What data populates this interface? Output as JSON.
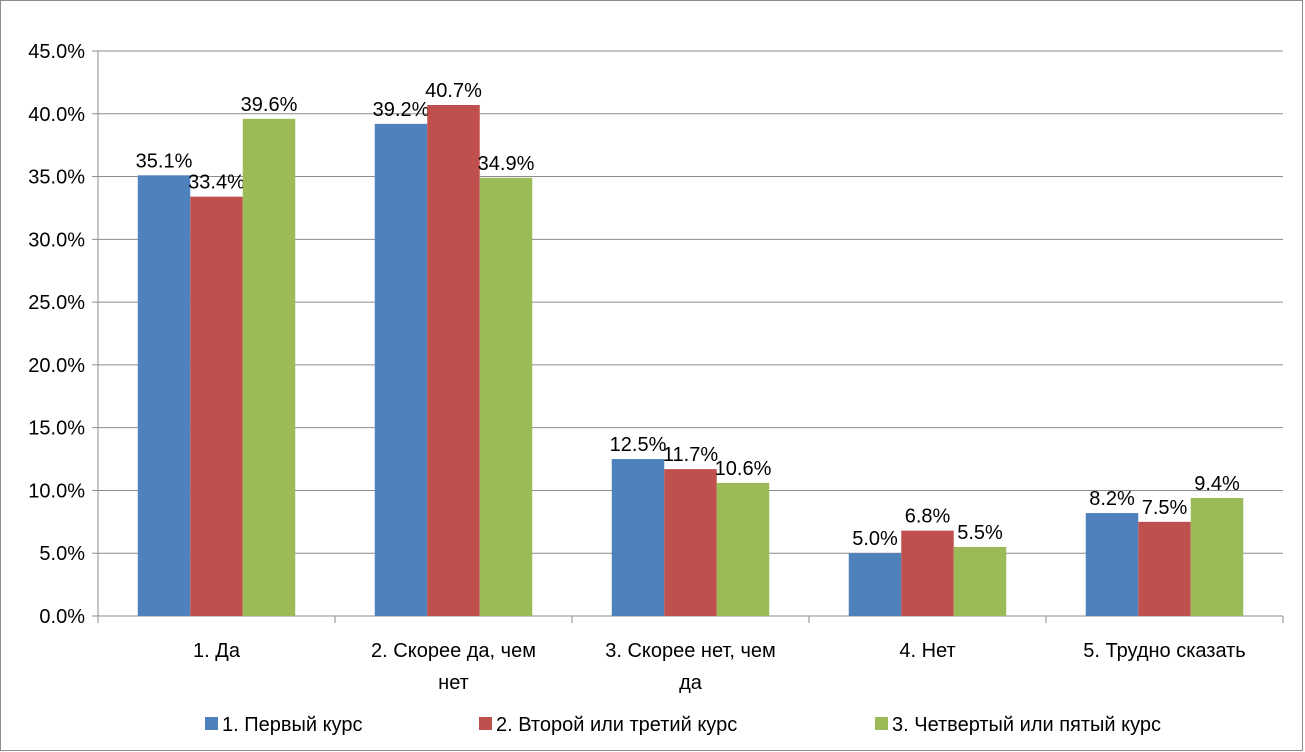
{
  "chart_data": {
    "type": "bar",
    "categories": [
      "1. Да",
      "2. Скорее да, чем нет",
      "3. Скорее нет, чем да",
      "4. Нет",
      "5. Трудно сказать"
    ],
    "category_lines": [
      [
        "1. Да"
      ],
      [
        "2. Скорее да, чем",
        "нет"
      ],
      [
        "3. Скорее нет, чем",
        "да"
      ],
      [
        "4. Нет"
      ],
      [
        "5. Трудно сказать"
      ]
    ],
    "series": [
      {
        "name": "1. Первый курс",
        "color": "#4F81BD",
        "values": [
          35.1,
          39.2,
          12.5,
          5.0,
          8.2
        ]
      },
      {
        "name": "2. Второй или третий курс",
        "color": "#C0504D",
        "values": [
          33.4,
          40.7,
          11.7,
          6.8,
          7.5
        ]
      },
      {
        "name": "3. Четвертый или пятый курс",
        "color": "#9BBB59",
        "values": [
          39.6,
          34.9,
          10.6,
          5.5,
          9.4
        ]
      }
    ],
    "data_labels": [
      [
        "35.1%",
        "39.2%",
        "12.5%",
        "5.0%",
        "8.2%"
      ],
      [
        "33.4%",
        "40.7%",
        "11.7%",
        "6.8%",
        "7.5%"
      ],
      [
        "39.6%",
        "34.9%",
        "10.6%",
        "5.5%",
        "9.4%"
      ]
    ],
    "y_ticks": [
      "0.0%",
      "5.0%",
      "10.0%",
      "15.0%",
      "20.0%",
      "25.0%",
      "30.0%",
      "35.0%",
      "40.0%",
      "45.0%"
    ],
    "ylim": [
      0,
      45
    ],
    "ystep": 5,
    "grid": true,
    "legend_position": "bottom",
    "title": "",
    "xlabel": "",
    "ylabel": ""
  }
}
